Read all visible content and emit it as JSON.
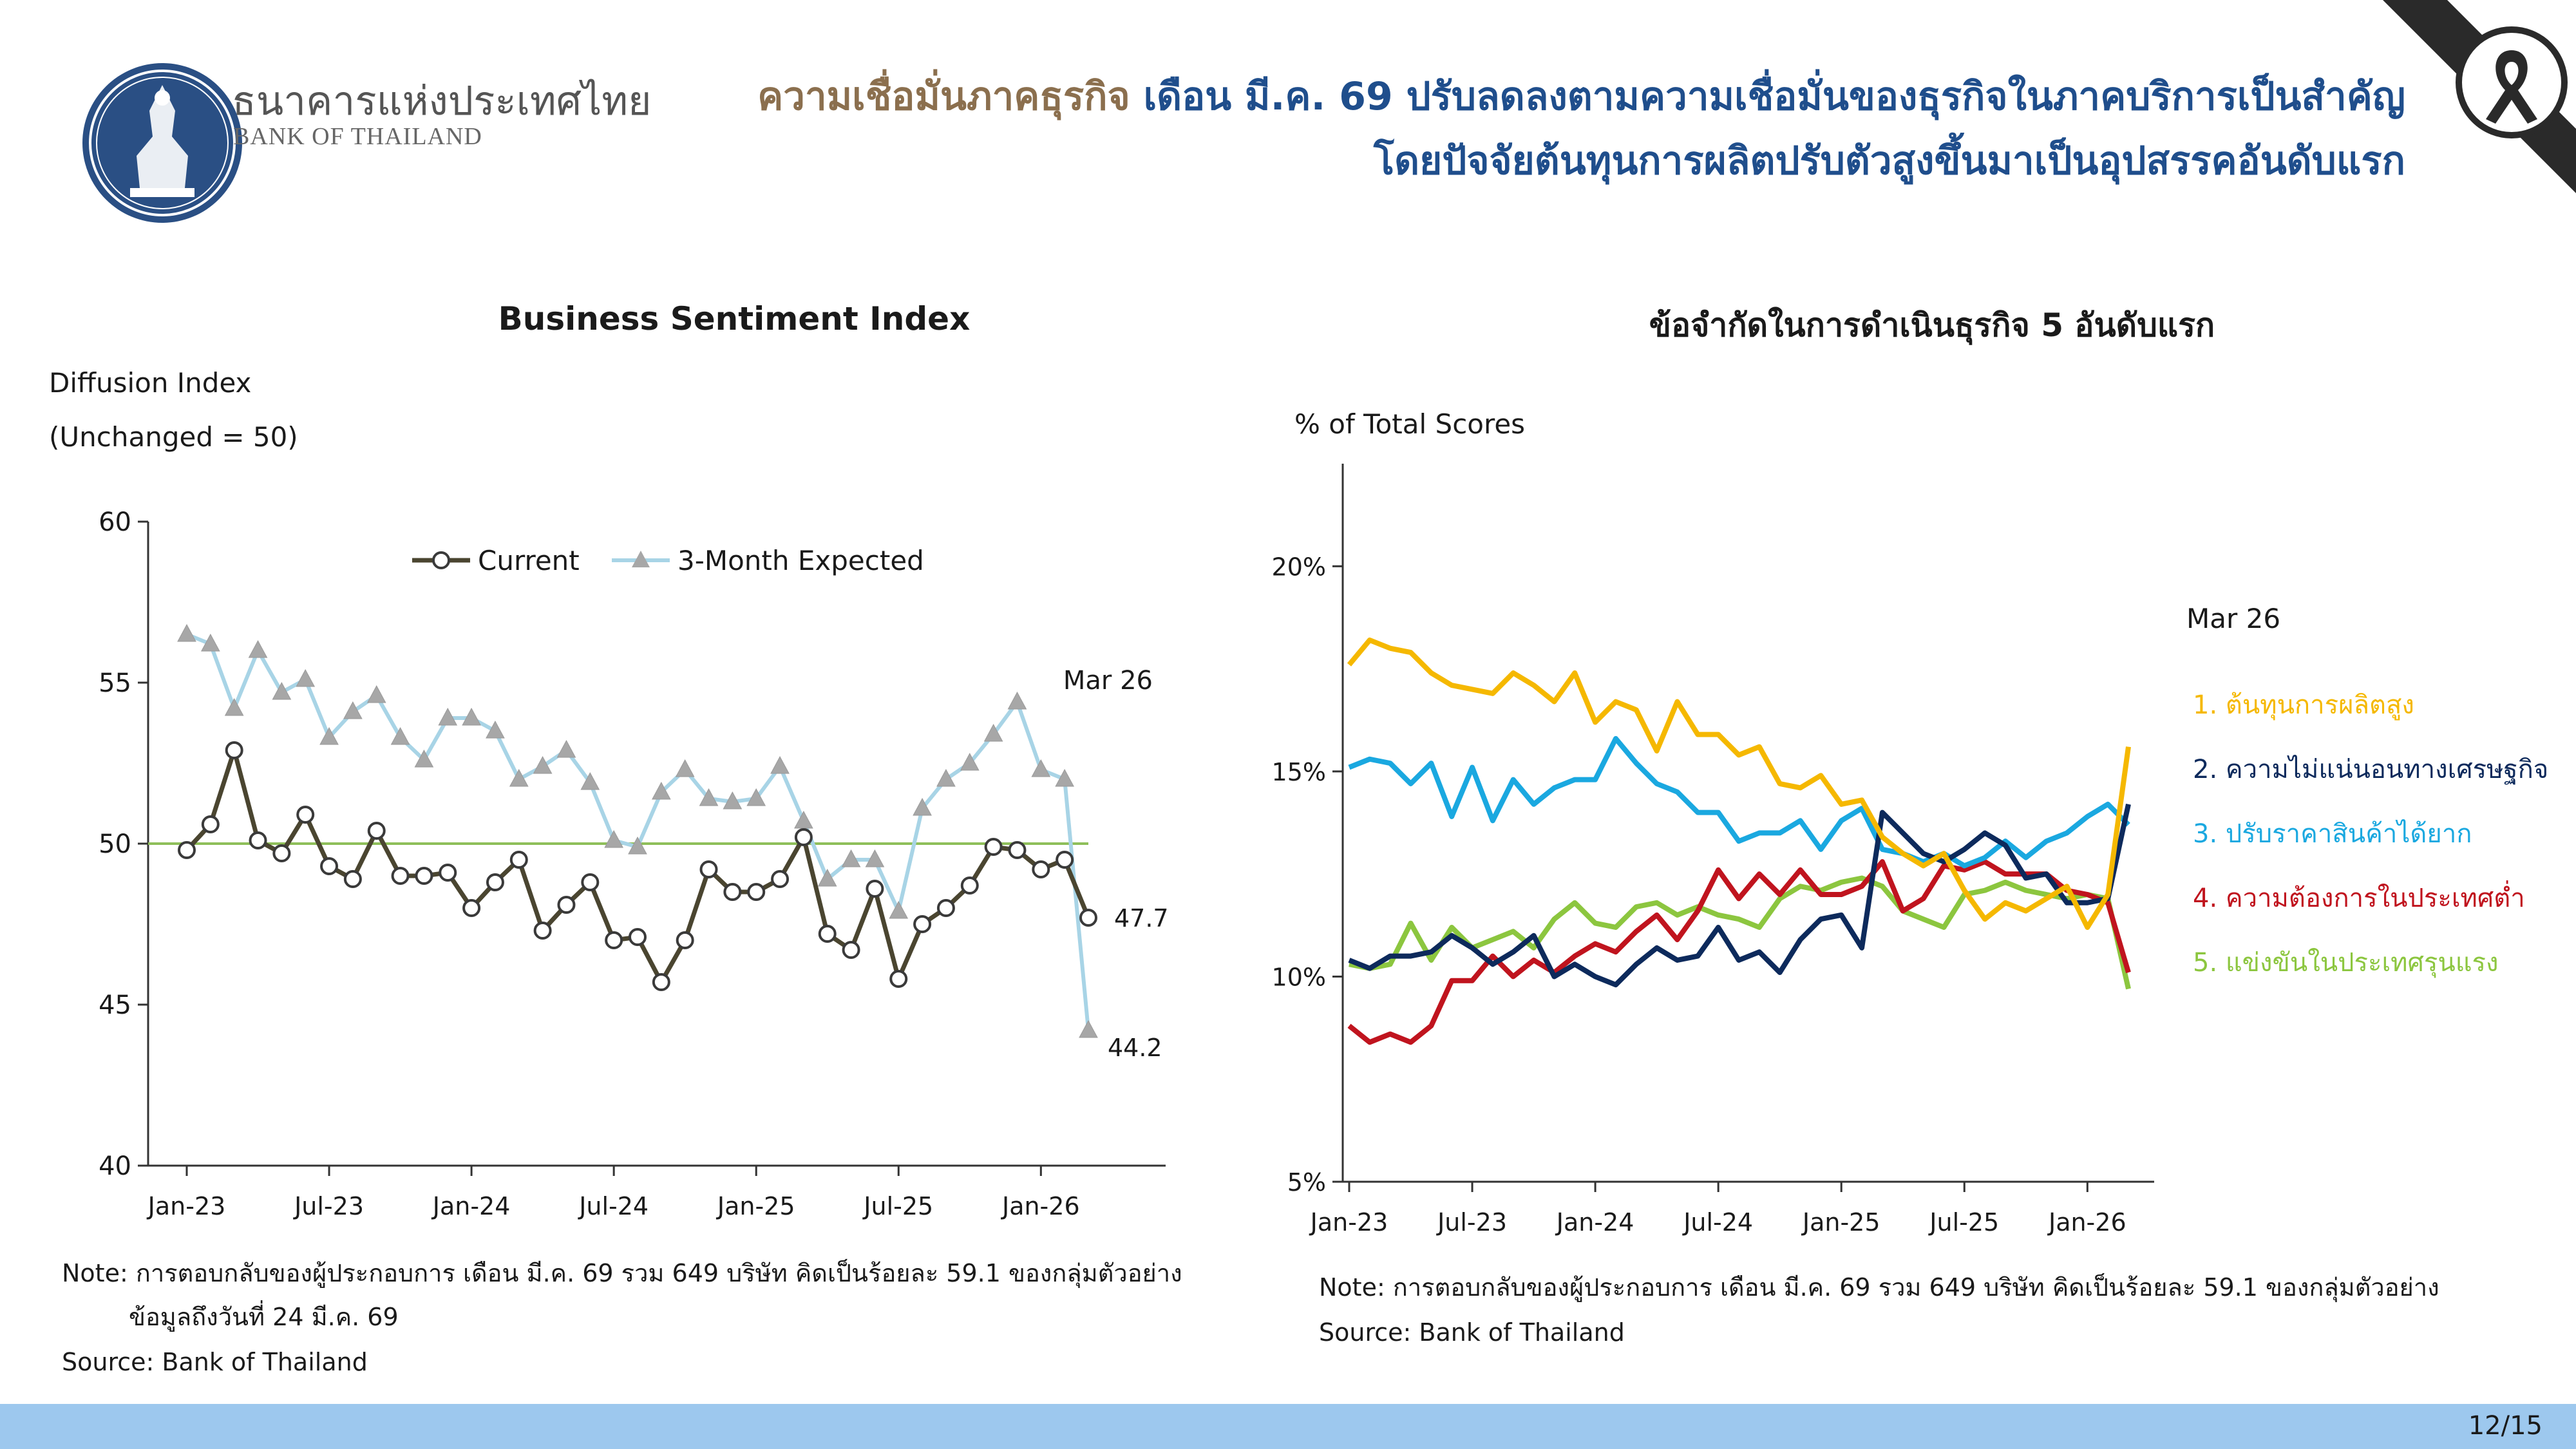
{
  "header": {
    "bank_name_th": "ธนาคารแห่งประเทศไทย",
    "bank_name_en": "BANK OF THAILAND",
    "headline_part1": "ความเชื่อมั่นภาคธุรกิจ",
    "headline_part2": " เดือน มี.ค. 69 ปรับลดลงตามความเชื่อมั่นของธุรกิจในภาคบริการเป็นสำคัญ",
    "headline_line2": "โดยปัจจัยต้นทุนการผลิตปรับตัวสูงขึ้นมาเป็นอุปสรรคอันดับแรก",
    "accent_color": "#8b6f4e",
    "headline_color": "#1f4e8c",
    "logo_icon": "bank-of-thailand-seal-icon",
    "mourning_icon": "black-ribbon-icon"
  },
  "left_panel": {
    "ylabel_line1": "Diffusion Index",
    "ylabel_line2": "(Unchanged = 50)",
    "note_line1": "Note: การตอบกลับของผู้ประกอบการ เดือน มี.ค. 69 รวม 649 บริษัท คิดเป็นร้อยละ 59.1 ของกลุ่มตัวอย่าง",
    "note_line2": "ข้อมูลถึงวันที่ 24 มี.ค. 69",
    "source": "Source: Bank of Thailand"
  },
  "right_panel": {
    "ylabel": "% of Total Scores",
    "note_line1": "Note: การตอบกลับของผู้ประกอบการ เดือน มี.ค. 69 รวม 649 บริษัท คิดเป็นร้อยละ 59.1 ของกลุ่มตัวอย่าง",
    "source": "Source: Bank of Thailand"
  },
  "footer": {
    "page": "12/15",
    "color": "#9dc8ee"
  },
  "chart_data": [
    {
      "type": "line",
      "title": "Business Sentiment Index",
      "ylabel": "Diffusion Index (Unchanged = 50)",
      "ylim": [
        40,
        60
      ],
      "yticks": [
        "40",
        "45",
        "50",
        "55",
        "60"
      ],
      "x_tick_labels": [
        "Jan-23",
        "Jul-23",
        "Jan-24",
        "Jul-24",
        "Jan-25",
        "Jul-25",
        "Jan-26"
      ],
      "x_tick_index": [
        0,
        6,
        12,
        18,
        24,
        30,
        36
      ],
      "reference_line": 50,
      "reference_color": "#8fbf5a",
      "legend_position": "top",
      "annotation": "Mar 26",
      "series": [
        {
          "name": "Current",
          "color": "#4a4530",
          "marker": "circle",
          "end_label": "47.7",
          "values": [
            49.8,
            50.6,
            52.9,
            50.1,
            49.7,
            50.9,
            49.3,
            48.9,
            50.4,
            49.0,
            49.0,
            49.1,
            48.0,
            48.8,
            49.5,
            47.3,
            48.1,
            48.8,
            47.0,
            47.1,
            45.7,
            47.0,
            49.2,
            48.5,
            48.5,
            48.9,
            50.2,
            47.2,
            46.7,
            48.6,
            45.8,
            47.5,
            48.0,
            48.7,
            49.9,
            49.8,
            49.2,
            49.5,
            47.7
          ]
        },
        {
          "name": "3-Month Expected",
          "color": "#a8d4e6",
          "marker": "triangle",
          "end_label": "44.2",
          "values": [
            56.5,
            56.2,
            54.2,
            56.0,
            54.7,
            55.1,
            53.3,
            54.1,
            54.6,
            53.3,
            52.6,
            53.9,
            53.9,
            53.5,
            52.0,
            52.4,
            52.9,
            51.9,
            50.1,
            49.9,
            51.6,
            52.3,
            51.4,
            51.3,
            51.4,
            52.4,
            50.7,
            48.9,
            49.5,
            49.5,
            47.9,
            51.1,
            52.0,
            52.5,
            53.4,
            54.4,
            52.3,
            52.0,
            44.2
          ]
        }
      ]
    },
    {
      "type": "line",
      "title": "ข้อจำกัดในการดำเนินธุรกิจ 5 อันดับแรก",
      "ylabel": "% of Total Scores",
      "ylim": [
        5,
        22.5
      ],
      "yticks": [
        "5%",
        "10%",
        "15%",
        "20%"
      ],
      "x_tick_labels": [
        "Jan-23",
        "Jul-23",
        "Jan-24",
        "Jul-24",
        "Jan-25",
        "Jul-25",
        "Jan-26"
      ],
      "x_tick_index": [
        0,
        6,
        12,
        18,
        24,
        30,
        36
      ],
      "legend_title": "Mar 26",
      "legend_position": "right",
      "series": [
        {
          "name": "1. ต้นทุนการผลิตสูง",
          "color": "#f5b800",
          "values": [
            17.6,
            18.2,
            18.0,
            17.9,
            17.4,
            17.1,
            17.0,
            16.9,
            17.4,
            17.1,
            16.7,
            17.4,
            16.2,
            16.7,
            16.5,
            15.5,
            16.7,
            15.9,
            15.9,
            15.4,
            15.6,
            14.7,
            14.6,
            14.9,
            14.2,
            14.3,
            13.4,
            13.0,
            12.7,
            13.0,
            12.1,
            11.4,
            11.8,
            11.6,
            11.9,
            12.2,
            11.2,
            12.0,
            15.6
          ]
        },
        {
          "name": "2. ความไม่แน่นอนทางเศรษฐกิจ",
          "color": "#0d2a5c",
          "values": [
            10.4,
            10.2,
            10.5,
            10.5,
            10.6,
            11.0,
            10.7,
            10.3,
            10.6,
            11.0,
            10.0,
            10.3,
            10.0,
            9.8,
            10.3,
            10.7,
            10.4,
            10.5,
            11.2,
            10.4,
            10.6,
            10.1,
            10.9,
            11.4,
            11.5,
            10.7,
            14.0,
            13.5,
            13.0,
            12.8,
            13.1,
            13.5,
            13.2,
            12.4,
            12.5,
            11.8,
            11.8,
            11.9,
            14.2
          ]
        },
        {
          "name": "3. ปรับราคาสินค้าได้ยาก",
          "color": "#1aa8e0",
          "values": [
            15.1,
            15.3,
            15.2,
            14.7,
            15.2,
            13.9,
            15.1,
            13.8,
            14.8,
            14.2,
            14.6,
            14.8,
            14.8,
            15.8,
            15.2,
            14.7,
            14.5,
            14.0,
            14.0,
            13.3,
            13.5,
            13.5,
            13.8,
            13.1,
            13.8,
            14.1,
            13.1,
            13.0,
            12.8,
            13.0,
            12.7,
            12.9,
            13.3,
            12.9,
            13.3,
            13.5,
            13.9,
            14.2,
            13.7
          ]
        },
        {
          "name": "4. ความต้องการในประเทศต่ำ",
          "color": "#c0141e",
          "values": [
            8.8,
            8.4,
            8.6,
            8.4,
            8.8,
            9.9,
            9.9,
            10.5,
            10.0,
            10.4,
            10.1,
            10.5,
            10.8,
            10.6,
            11.1,
            11.5,
            10.9,
            11.6,
            12.6,
            11.9,
            12.5,
            12.0,
            12.6,
            12.0,
            12.0,
            12.2,
            12.8,
            11.6,
            11.9,
            12.7,
            12.6,
            12.8,
            12.5,
            12.5,
            12.5,
            12.1,
            12.0,
            11.8,
            10.1
          ]
        },
        {
          "name": "5. แข่งขันในประเทศรุนแรง",
          "color": "#8cc63f",
          "values": [
            10.3,
            10.2,
            10.3,
            11.3,
            10.4,
            11.2,
            10.7,
            10.9,
            11.1,
            10.7,
            11.4,
            11.8,
            11.3,
            11.2,
            11.7,
            11.8,
            11.5,
            11.7,
            11.5,
            11.4,
            11.2,
            11.9,
            12.2,
            12.1,
            12.3,
            12.4,
            12.2,
            11.6,
            11.4,
            11.2,
            12.0,
            12.1,
            12.3,
            12.1,
            12.0,
            11.9,
            12.0,
            11.9,
            9.7
          ]
        }
      ]
    }
  ]
}
